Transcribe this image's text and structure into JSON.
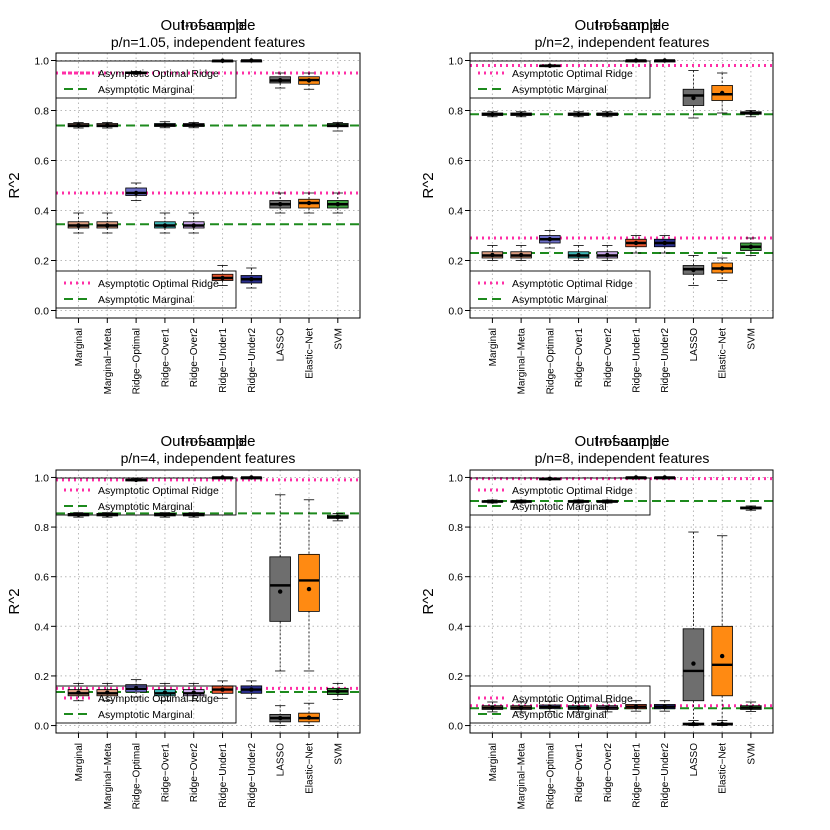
{
  "chart_data": [
    {
      "type": "box",
      "title": "Out-of-sample",
      "title_overlay": "In-sample",
      "subtitle": "p/n=1.05, independent features",
      "ylabel": "R^2",
      "ylim": [
        -0.03,
        1.03
      ],
      "yticks": [
        "0.0",
        "0.2",
        "0.4",
        "0.6",
        "0.8",
        "1.0"
      ],
      "grid": true,
      "categories": [
        "Marginal",
        "Marginal−Meta",
        "Ridge−Optimal",
        "Ridge−Over1",
        "Ridge−Over2",
        "Ridge−Under1",
        "Ridge−Under2",
        "LASSO",
        "Elastic−Net",
        "SVM"
      ],
      "legend": [
        "Asymptotic Optimal Ridge",
        "Asymptotic Marginal"
      ],
      "ref_lines": {
        "in_optimal": 0.95,
        "in_marginal": 0.74,
        "out_optimal": 0.47,
        "out_marginal": 0.345
      },
      "in_sample": [
        {
          "q1": 0.735,
          "median": 0.74,
          "q3": 0.748,
          "lo": 0.73,
          "hi": 0.752,
          "mean": 0.741
        },
        {
          "q1": 0.735,
          "median": 0.74,
          "q3": 0.748,
          "lo": 0.73,
          "hi": 0.752,
          "mean": 0.741
        },
        {
          "q1": 0.948,
          "median": 0.951,
          "q3": 0.954,
          "lo": 0.946,
          "hi": 0.956,
          "mean": 0.951
        },
        {
          "q1": 0.736,
          "median": 0.741,
          "q3": 0.748,
          "lo": 0.731,
          "hi": 0.755,
          "mean": 0.742
        },
        {
          "q1": 0.736,
          "median": 0.741,
          "q3": 0.748,
          "lo": 0.731,
          "hi": 0.752,
          "mean": 0.742
        },
        {
          "q1": 0.998,
          "median": 0.999,
          "q3": 1.0,
          "lo": 0.997,
          "hi": 1.0,
          "mean": 0.999
        },
        {
          "q1": 0.999,
          "median": 1.0,
          "q3": 1.0,
          "lo": 0.998,
          "hi": 1.0,
          "mean": 1.0
        },
        {
          "q1": 0.91,
          "median": 0.92,
          "q3": 0.935,
          "lo": 0.89,
          "hi": 0.95,
          "mean": 0.921
        },
        {
          "q1": 0.905,
          "median": 0.922,
          "q3": 0.935,
          "lo": 0.885,
          "hi": 0.95,
          "mean": 0.92
        },
        {
          "q1": 0.735,
          "median": 0.74,
          "q3": 0.748,
          "lo": 0.718,
          "hi": 0.752,
          "mean": 0.741
        }
      ],
      "out_sample": [
        {
          "q1": 0.33,
          "median": 0.34,
          "q3": 0.355,
          "lo": 0.31,
          "hi": 0.39,
          "mean": 0.34
        },
        {
          "q1": 0.33,
          "median": 0.34,
          "q3": 0.355,
          "lo": 0.31,
          "hi": 0.39,
          "mean": 0.34
        },
        {
          "q1": 0.46,
          "median": 0.47,
          "q3": 0.49,
          "lo": 0.44,
          "hi": 0.51,
          "mean": 0.47
        },
        {
          "q1": 0.33,
          "median": 0.34,
          "q3": 0.355,
          "lo": 0.31,
          "hi": 0.39,
          "mean": 0.34
        },
        {
          "q1": 0.33,
          "median": 0.34,
          "q3": 0.355,
          "lo": 0.31,
          "hi": 0.39,
          "mean": 0.34
        },
        {
          "q1": 0.12,
          "median": 0.13,
          "q3": 0.145,
          "lo": 0.1,
          "hi": 0.18,
          "mean": 0.13
        },
        {
          "q1": 0.11,
          "median": 0.125,
          "q3": 0.14,
          "lo": 0.09,
          "hi": 0.17,
          "mean": 0.125
        },
        {
          "q1": 0.41,
          "median": 0.425,
          "q3": 0.44,
          "lo": 0.39,
          "hi": 0.47,
          "mean": 0.425
        },
        {
          "q1": 0.41,
          "median": 0.43,
          "q3": 0.445,
          "lo": 0.39,
          "hi": 0.47,
          "mean": 0.43
        },
        {
          "q1": 0.41,
          "median": 0.425,
          "q3": 0.44,
          "lo": 0.39,
          "hi": 0.47,
          "mean": 0.425
        }
      ]
    },
    {
      "type": "box",
      "title": "Out-of-sample",
      "title_overlay": "In-sample",
      "subtitle": "p/n=2, independent features",
      "ylabel": "R^2",
      "ylim": [
        -0.03,
        1.03
      ],
      "yticks": [
        "0.0",
        "0.2",
        "0.4",
        "0.6",
        "0.8",
        "1.0"
      ],
      "grid": true,
      "categories": [
        "Marginal",
        "Marginal−Meta",
        "Ridge−Optimal",
        "Ridge−Over1",
        "Ridge−Over2",
        "Ridge−Under1",
        "Ridge−Under2",
        "LASSO",
        "Elastic−Net",
        "SVM"
      ],
      "legend": [
        "Asymptotic Optimal Ridge",
        "Asymptotic Marginal"
      ],
      "ref_lines": {
        "in_optimal": 0.98,
        "in_marginal": 0.785,
        "out_optimal": 0.29,
        "out_marginal": 0.23
      },
      "in_sample": [
        {
          "q1": 0.78,
          "median": 0.785,
          "q3": 0.79,
          "lo": 0.775,
          "hi": 0.795,
          "mean": 0.785
        },
        {
          "q1": 0.78,
          "median": 0.785,
          "q3": 0.79,
          "lo": 0.775,
          "hi": 0.795,
          "mean": 0.785
        },
        {
          "q1": 0.977,
          "median": 0.979,
          "q3": 0.981,
          "lo": 0.975,
          "hi": 0.983,
          "mean": 0.979
        },
        {
          "q1": 0.78,
          "median": 0.785,
          "q3": 0.79,
          "lo": 0.775,
          "hi": 0.795,
          "mean": 0.785
        },
        {
          "q1": 0.78,
          "median": 0.785,
          "q3": 0.79,
          "lo": 0.775,
          "hi": 0.795,
          "mean": 0.785
        },
        {
          "q1": 0.999,
          "median": 1.0,
          "q3": 1.0,
          "lo": 0.998,
          "hi": 1.0,
          "mean": 1.0
        },
        {
          "q1": 0.999,
          "median": 1.0,
          "q3": 1.0,
          "lo": 0.998,
          "hi": 1.0,
          "mean": 1.0
        },
        {
          "q1": 0.82,
          "median": 0.86,
          "q3": 0.885,
          "lo": 0.77,
          "hi": 0.96,
          "mean": 0.85
        },
        {
          "q1": 0.84,
          "median": 0.865,
          "q3": 0.9,
          "lo": 0.79,
          "hi": 0.95,
          "mean": 0.87
        },
        {
          "q1": 0.785,
          "median": 0.79,
          "q3": 0.795,
          "lo": 0.775,
          "hi": 0.8,
          "mean": 0.79
        }
      ],
      "out_sample": [
        {
          "q1": 0.21,
          "median": 0.22,
          "q3": 0.235,
          "lo": 0.2,
          "hi": 0.26,
          "mean": 0.222
        },
        {
          "q1": 0.21,
          "median": 0.22,
          "q3": 0.235,
          "lo": 0.2,
          "hi": 0.26,
          "mean": 0.222
        },
        {
          "q1": 0.27,
          "median": 0.285,
          "q3": 0.3,
          "lo": 0.25,
          "hi": 0.32,
          "mean": 0.285
        },
        {
          "q1": 0.21,
          "median": 0.22,
          "q3": 0.235,
          "lo": 0.2,
          "hi": 0.26,
          "mean": 0.222
        },
        {
          "q1": 0.21,
          "median": 0.22,
          "q3": 0.235,
          "lo": 0.2,
          "hi": 0.26,
          "mean": 0.222
        },
        {
          "q1": 0.255,
          "median": 0.27,
          "q3": 0.285,
          "lo": 0.23,
          "hi": 0.3,
          "mean": 0.27
        },
        {
          "q1": 0.255,
          "median": 0.27,
          "q3": 0.285,
          "lo": 0.23,
          "hi": 0.3,
          "mean": 0.27
        },
        {
          "q1": 0.145,
          "median": 0.165,
          "q3": 0.18,
          "lo": 0.1,
          "hi": 0.22,
          "mean": 0.162
        },
        {
          "q1": 0.15,
          "median": 0.168,
          "q3": 0.19,
          "lo": 0.12,
          "hi": 0.21,
          "mean": 0.168
        },
        {
          "q1": 0.24,
          "median": 0.255,
          "q3": 0.27,
          "lo": 0.22,
          "hi": 0.29,
          "mean": 0.255
        }
      ]
    },
    {
      "type": "box",
      "title": "Out-of-sample",
      "title_overlay": "In-sample",
      "subtitle": "p/n=4, independent features",
      "ylabel": "R^2",
      "ylim": [
        -0.03,
        1.03
      ],
      "yticks": [
        "0.0",
        "0.2",
        "0.4",
        "0.6",
        "0.8",
        "1.0"
      ],
      "grid": true,
      "categories": [
        "Marginal",
        "Marginal−Meta",
        "Ridge−Optimal",
        "Ridge−Over1",
        "Ridge−Over2",
        "Ridge−Under1",
        "Ridge−Under2",
        "LASSO",
        "Elastic−Net",
        "SVM"
      ],
      "legend": [
        "Asymptotic Optimal Ridge",
        "Asymptotic Marginal"
      ],
      "ref_lines": {
        "in_optimal": 0.99,
        "in_marginal": 0.855,
        "out_optimal": 0.15,
        "out_marginal": 0.135
      },
      "in_sample": [
        {
          "q1": 0.845,
          "median": 0.85,
          "q3": 0.855,
          "lo": 0.84,
          "hi": 0.858,
          "mean": 0.85
        },
        {
          "q1": 0.845,
          "median": 0.85,
          "q3": 0.855,
          "lo": 0.84,
          "hi": 0.858,
          "mean": 0.85
        },
        {
          "q1": 0.988,
          "median": 0.99,
          "q3": 0.992,
          "lo": 0.986,
          "hi": 0.994,
          "mean": 0.99
        },
        {
          "q1": 0.845,
          "median": 0.85,
          "q3": 0.855,
          "lo": 0.84,
          "hi": 0.858,
          "mean": 0.85
        },
        {
          "q1": 0.845,
          "median": 0.85,
          "q3": 0.855,
          "lo": 0.84,
          "hi": 0.858,
          "mean": 0.85
        },
        {
          "q1": 0.999,
          "median": 1.0,
          "q3": 1.0,
          "lo": 0.998,
          "hi": 1.0,
          "mean": 1.0
        },
        {
          "q1": 0.999,
          "median": 1.0,
          "q3": 1.0,
          "lo": 0.998,
          "hi": 1.0,
          "mean": 1.0
        },
        {
          "q1": 0.42,
          "median": 0.565,
          "q3": 0.68,
          "lo": 0.22,
          "hi": 0.93,
          "mean": 0.54
        },
        {
          "q1": 0.46,
          "median": 0.585,
          "q3": 0.69,
          "lo": 0.22,
          "hi": 0.91,
          "mean": 0.55
        },
        {
          "q1": 0.835,
          "median": 0.84,
          "q3": 0.848,
          "lo": 0.825,
          "hi": 0.855,
          "mean": 0.84
        }
      ],
      "out_sample": [
        {
          "q1": 0.12,
          "median": 0.13,
          "q3": 0.145,
          "lo": 0.1,
          "hi": 0.17,
          "mean": 0.133
        },
        {
          "q1": 0.12,
          "median": 0.13,
          "q3": 0.145,
          "lo": 0.1,
          "hi": 0.17,
          "mean": 0.133
        },
        {
          "q1": 0.135,
          "median": 0.148,
          "q3": 0.165,
          "lo": 0.115,
          "hi": 0.185,
          "mean": 0.15
        },
        {
          "q1": 0.12,
          "median": 0.13,
          "q3": 0.145,
          "lo": 0.1,
          "hi": 0.17,
          "mean": 0.133
        },
        {
          "q1": 0.12,
          "median": 0.13,
          "q3": 0.145,
          "lo": 0.1,
          "hi": 0.17,
          "mean": 0.133
        },
        {
          "q1": 0.13,
          "median": 0.145,
          "q3": 0.16,
          "lo": 0.11,
          "hi": 0.18,
          "mean": 0.145
        },
        {
          "q1": 0.13,
          "median": 0.145,
          "q3": 0.16,
          "lo": 0.11,
          "hi": 0.18,
          "mean": 0.145
        },
        {
          "q1": 0.015,
          "median": 0.03,
          "q3": 0.045,
          "lo": 0.0,
          "hi": 0.08,
          "mean": 0.03
        },
        {
          "q1": 0.015,
          "median": 0.03,
          "q3": 0.05,
          "lo": 0.0,
          "hi": 0.09,
          "mean": 0.032
        },
        {
          "q1": 0.125,
          "median": 0.138,
          "q3": 0.15,
          "lo": 0.105,
          "hi": 0.17,
          "mean": 0.138
        }
      ]
    },
    {
      "type": "box",
      "title": "Out-of-sample",
      "title_overlay": "In-sample",
      "subtitle": "p/n=8, independent features",
      "ylabel": "R^2",
      "ylim": [
        -0.03,
        1.03
      ],
      "yticks": [
        "0.0",
        "0.2",
        "0.4",
        "0.6",
        "0.8",
        "1.0"
      ],
      "grid": true,
      "categories": [
        "Marginal",
        "Marginal−Meta",
        "Ridge−Optimal",
        "Ridge−Over1",
        "Ridge−Over2",
        "Ridge−Under1",
        "Ridge−Under2",
        "LASSO",
        "Elastic−Net",
        "SVM"
      ],
      "legend": [
        "Asymptotic Optimal Ridge",
        "Asymptotic Marginal"
      ],
      "ref_lines": {
        "in_optimal": 0.995,
        "in_marginal": 0.905,
        "out_optimal": 0.08,
        "out_marginal": 0.07
      },
      "in_sample": [
        {
          "q1": 0.9,
          "median": 0.903,
          "q3": 0.906,
          "lo": 0.897,
          "hi": 0.909,
          "mean": 0.903
        },
        {
          "q1": 0.9,
          "median": 0.903,
          "q3": 0.906,
          "lo": 0.897,
          "hi": 0.909,
          "mean": 0.903
        },
        {
          "q1": 0.994,
          "median": 0.995,
          "q3": 0.996,
          "lo": 0.993,
          "hi": 0.997,
          "mean": 0.995
        },
        {
          "q1": 0.9,
          "median": 0.903,
          "q3": 0.906,
          "lo": 0.897,
          "hi": 0.909,
          "mean": 0.903
        },
        {
          "q1": 0.9,
          "median": 0.903,
          "q3": 0.906,
          "lo": 0.897,
          "hi": 0.909,
          "mean": 0.903
        },
        {
          "q1": 0.999,
          "median": 1.0,
          "q3": 1.0,
          "lo": 0.998,
          "hi": 1.0,
          "mean": 1.0
        },
        {
          "q1": 0.999,
          "median": 1.0,
          "q3": 1.0,
          "lo": 0.998,
          "hi": 1.0,
          "mean": 1.0
        },
        {
          "q1": 0.1,
          "median": 0.22,
          "q3": 0.39,
          "lo": 0.01,
          "hi": 0.78,
          "mean": 0.25
        },
        {
          "q1": 0.12,
          "median": 0.245,
          "q3": 0.4,
          "lo": 0.01,
          "hi": 0.765,
          "mean": 0.28
        },
        {
          "q1": 0.873,
          "median": 0.877,
          "q3": 0.881,
          "lo": 0.868,
          "hi": 0.885,
          "mean": 0.877
        }
      ],
      "out_sample": [
        {
          "q1": 0.065,
          "median": 0.072,
          "q3": 0.08,
          "lo": 0.055,
          "hi": 0.095,
          "mean": 0.072
        },
        {
          "q1": 0.065,
          "median": 0.072,
          "q3": 0.08,
          "lo": 0.055,
          "hi": 0.095,
          "mean": 0.072
        },
        {
          "q1": 0.068,
          "median": 0.075,
          "q3": 0.083,
          "lo": 0.057,
          "hi": 0.098,
          "mean": 0.075
        },
        {
          "q1": 0.065,
          "median": 0.072,
          "q3": 0.08,
          "lo": 0.055,
          "hi": 0.095,
          "mean": 0.072
        },
        {
          "q1": 0.065,
          "median": 0.072,
          "q3": 0.08,
          "lo": 0.055,
          "hi": 0.095,
          "mean": 0.072
        },
        {
          "q1": 0.068,
          "median": 0.076,
          "q3": 0.085,
          "lo": 0.058,
          "hi": 0.1,
          "mean": 0.076
        },
        {
          "q1": 0.068,
          "median": 0.076,
          "q3": 0.085,
          "lo": 0.058,
          "hi": 0.1,
          "mean": 0.076
        },
        {
          "q1": 0.002,
          "median": 0.005,
          "q3": 0.01,
          "lo": 0.0,
          "hi": 0.02,
          "mean": 0.006
        },
        {
          "q1": 0.002,
          "median": 0.005,
          "q3": 0.01,
          "lo": 0.0,
          "hi": 0.02,
          "mean": 0.006
        },
        {
          "q1": 0.065,
          "median": 0.072,
          "q3": 0.08,
          "lo": 0.057,
          "hi": 0.095,
          "mean": 0.072
        }
      ]
    }
  ],
  "colors": {
    "box_fills": [
      "#d99c7f",
      "#d99c7f",
      "#6d6fc9",
      "#3fb6b6",
      "#c9a9e8",
      "#e8562e",
      "#2b2f8f",
      "#6e6e6e",
      "#ff8a12",
      "#3f9f3f"
    ],
    "optimal_line": "#ff2ea6",
    "marginal_line": "#1d8a1d",
    "grid": "#b8b8b8"
  }
}
